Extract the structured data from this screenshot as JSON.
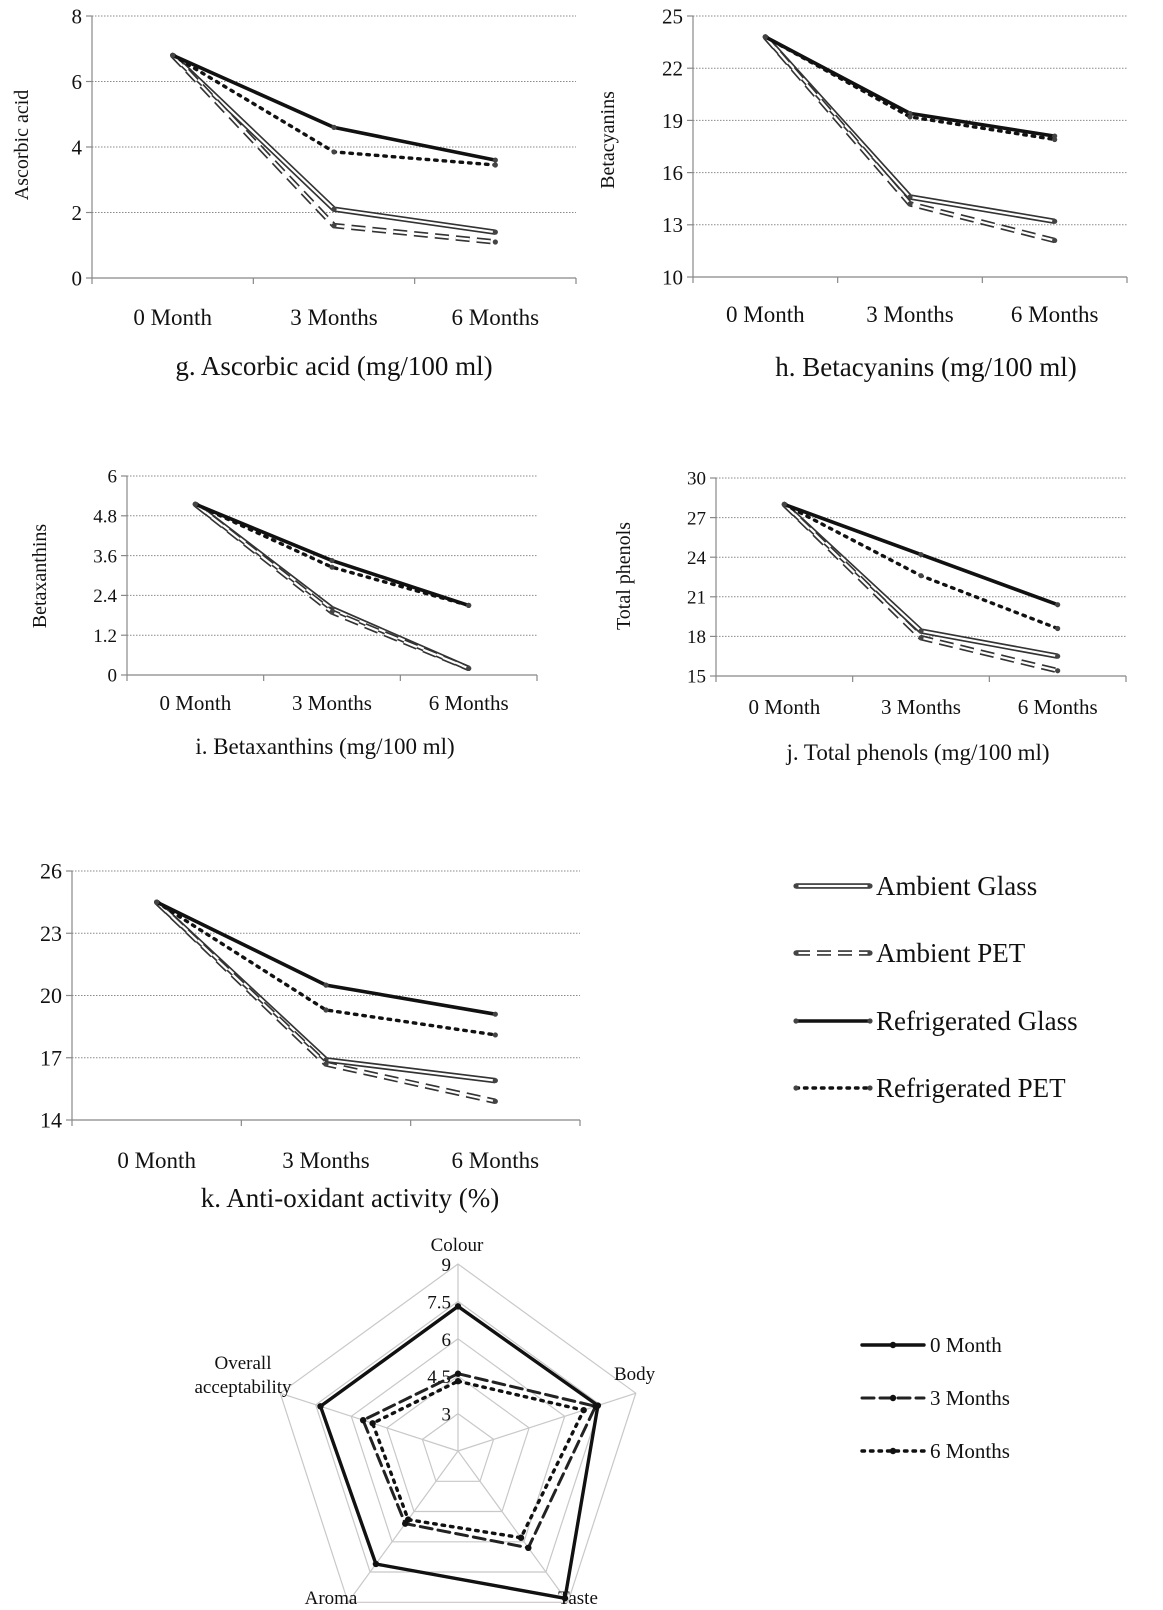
{
  "chart_data": [
    {
      "id": "g",
      "type": "line",
      "title": "g. Ascorbic acid (mg/100 ml)",
      "ylabel": "Ascorbic acid",
      "xlabel": "",
      "categories": [
        "0 Month",
        "3 Months",
        "6 Months"
      ],
      "ylim": [
        0,
        8
      ],
      "yticks": [
        "0",
        "2",
        "4",
        "6",
        "8"
      ],
      "ytick_values": [
        0,
        2,
        4,
        6,
        8
      ],
      "grid": true,
      "series": [
        {
          "name": "Ambient Glass",
          "values": [
            6.8,
            2.1,
            1.4
          ]
        },
        {
          "name": "Ambient PET",
          "values": [
            6.8,
            1.6,
            1.1
          ]
        },
        {
          "name": "Refrigerated Glass",
          "values": [
            6.8,
            4.6,
            3.6
          ]
        },
        {
          "name": "Refrigerated PET",
          "values": [
            6.8,
            3.85,
            3.45
          ]
        }
      ]
    },
    {
      "id": "h",
      "type": "line",
      "title": "h. Betacyanins (mg/100 ml)",
      "ylabel": "Betacyanins",
      "xlabel": "",
      "categories": [
        "0 Month",
        "3 Months",
        "6 Months"
      ],
      "ylim": [
        10,
        25
      ],
      "yticks": [
        "10",
        "13",
        "16",
        "19",
        "22",
        "25"
      ],
      "ytick_values": [
        10,
        13,
        16,
        19,
        22,
        25
      ],
      "grid": true,
      "series": [
        {
          "name": "Ambient Glass",
          "values": [
            23.8,
            14.6,
            13.2
          ]
        },
        {
          "name": "Ambient PET",
          "values": [
            23.8,
            14.2,
            12.1
          ]
        },
        {
          "name": "Refrigerated Glass",
          "values": [
            23.8,
            19.4,
            18.1
          ]
        },
        {
          "name": "Refrigerated PET",
          "values": [
            23.8,
            19.2,
            17.9
          ]
        }
      ]
    },
    {
      "id": "i",
      "type": "line",
      "title": "i. Betaxanthins (mg/100 ml)",
      "ylabel": "Betaxanthins",
      "xlabel": "",
      "categories": [
        "0 Month",
        "3 Months",
        "6 Months"
      ],
      "ylim": [
        0,
        6
      ],
      "yticks": [
        "0",
        "1.2",
        "2.4",
        "3.6",
        "4.8",
        "6"
      ],
      "ytick_values": [
        0,
        1.2,
        2.4,
        3.6,
        4.8,
        6
      ],
      "grid": true,
      "series": [
        {
          "name": "Ambient Glass",
          "values": [
            5.15,
            2.0,
            0.2
          ]
        },
        {
          "name": "Ambient PET",
          "values": [
            5.15,
            1.9,
            0.2
          ]
        },
        {
          "name": "Refrigerated Glass",
          "values": [
            5.15,
            3.45,
            2.1
          ]
        },
        {
          "name": "Refrigerated PET",
          "values": [
            5.15,
            3.25,
            2.1
          ]
        }
      ]
    },
    {
      "id": "j",
      "type": "line",
      "title": "j. Total phenols (mg/100 ml)",
      "ylabel": "Total phenols",
      "xlabel": "",
      "categories": [
        "0 Month",
        "3 Months",
        "6 Months"
      ],
      "ylim": [
        15,
        30
      ],
      "yticks": [
        "15",
        "18",
        "21",
        "24",
        "27",
        "30"
      ],
      "ytick_values": [
        15,
        18,
        21,
        24,
        27,
        30
      ],
      "grid": true,
      "series": [
        {
          "name": "Ambient Glass",
          "values": [
            28.0,
            18.4,
            16.5
          ]
        },
        {
          "name": "Ambient PET",
          "values": [
            28.0,
            17.9,
            15.4
          ]
        },
        {
          "name": "Refrigerated Glass",
          "values": [
            28.0,
            24.2,
            20.4
          ]
        },
        {
          "name": "Refrigerated PET",
          "values": [
            28.0,
            22.6,
            18.6
          ]
        }
      ]
    },
    {
      "id": "k",
      "type": "line",
      "title": "k. Anti-oxidant activity (%)",
      "ylabel": "",
      "xlabel": "",
      "categories": [
        "0 Month",
        "3 Months",
        "6 Months"
      ],
      "ylim": [
        14,
        26
      ],
      "yticks": [
        "14",
        "17",
        "20",
        "23",
        "26"
      ],
      "ytick_values": [
        14,
        17,
        20,
        23,
        26
      ],
      "grid": true,
      "series": [
        {
          "name": "Ambient Glass",
          "values": [
            24.5,
            16.9,
            15.9
          ]
        },
        {
          "name": "Ambient PET",
          "values": [
            24.5,
            16.7,
            14.9
          ]
        },
        {
          "name": "Refrigerated Glass",
          "values": [
            24.5,
            20.5,
            19.1
          ]
        },
        {
          "name": "Refrigerated PET",
          "values": [
            24.5,
            19.3,
            18.1
          ]
        }
      ]
    },
    {
      "id": "radar",
      "type": "radar",
      "axes": [
        "Colour",
        "Body",
        "Taste",
        "Aroma",
        "Overall acceptability"
      ],
      "scale_labels": [
        "3",
        "4.5",
        "6",
        "7.5",
        "9"
      ],
      "scale_values": [
        3,
        4.5,
        6,
        7.5,
        9
      ],
      "rmin": 1.5,
      "rmax": 9,
      "series": [
        {
          "name": "0 Month",
          "values": [
            7.3,
            7.4,
            8.8,
            7.1,
            7.3
          ]
        },
        {
          "name": "3 Months",
          "values": [
            4.6,
            7.3,
            6.3,
            5.1,
            5.5
          ]
        },
        {
          "name": "6 Months",
          "values": [
            4.3,
            6.8,
            5.8,
            4.9,
            5.1
          ]
        }
      ]
    }
  ],
  "legends": {
    "line_series": [
      "Ambient Glass",
      "Ambient PET",
      "Refrigerated Glass",
      "Refrigerated PET"
    ],
    "radar_series": [
      "0 Month",
      "3 Months",
      "6 Months"
    ]
  },
  "radar_axis_labels": {
    "overall_line1": "Overall",
    "overall_line2": "acceptability"
  }
}
